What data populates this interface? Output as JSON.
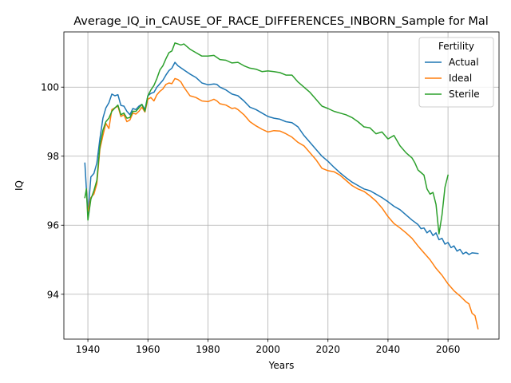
{
  "chart_data": {
    "type": "line",
    "title": "Average_IQ_in_CAUSE_OF_RACE_DIFFERENCES_INBORN_Sample for Mal",
    "xlabel": "Years",
    "ylabel": "IQ",
    "xlim": [
      1932,
      2077
    ],
    "ylim": [
      92.7,
      101.6
    ],
    "xticks": [
      1940,
      1960,
      1980,
      2000,
      2020,
      2040,
      2060
    ],
    "yticks": [
      94,
      96,
      98,
      100
    ],
    "grid": true,
    "legend": {
      "title": "Fertility",
      "placement": "top-right"
    },
    "series": [
      {
        "name": "Actual",
        "color": "#1f77b4",
        "points": [
          [
            1939,
            97.8
          ],
          [
            1940,
            96.3
          ],
          [
            1941,
            97.4
          ],
          [
            1942,
            97.5
          ],
          [
            1943,
            97.8
          ],
          [
            1944,
            98.5
          ],
          [
            1945,
            99.1
          ],
          [
            1946,
            99.4
          ],
          [
            1947,
            99.55
          ],
          [
            1948,
            99.8
          ],
          [
            1949,
            99.75
          ],
          [
            1950,
            99.78
          ],
          [
            1951,
            99.47
          ],
          [
            1952,
            99.45
          ],
          [
            1953,
            99.3
          ],
          [
            1954,
            99.2
          ],
          [
            1955,
            99.38
          ],
          [
            1956,
            99.35
          ],
          [
            1957,
            99.45
          ],
          [
            1958,
            99.5
          ],
          [
            1959,
            99.35
          ],
          [
            1960,
            99.75
          ],
          [
            1961,
            99.82
          ],
          [
            1962,
            99.85
          ],
          [
            1963,
            100.0
          ],
          [
            1964,
            100.1
          ],
          [
            1965,
            100.2
          ],
          [
            1966,
            100.35
          ],
          [
            1967,
            100.48
          ],
          [
            1968,
            100.55
          ],
          [
            1969,
            100.72
          ],
          [
            1970,
            100.62
          ],
          [
            1972,
            100.5
          ],
          [
            1974,
            100.38
          ],
          [
            1976,
            100.28
          ],
          [
            1978,
            100.12
          ],
          [
            1980,
            100.07
          ],
          [
            1982,
            100.09
          ],
          [
            1983,
            100.08
          ],
          [
            1984,
            100.0
          ],
          [
            1986,
            99.92
          ],
          [
            1988,
            99.8
          ],
          [
            1990,
            99.75
          ],
          [
            1992,
            99.6
          ],
          [
            1994,
            99.42
          ],
          [
            1996,
            99.35
          ],
          [
            1998,
            99.25
          ],
          [
            2000,
            99.15
          ],
          [
            2002,
            99.1
          ],
          [
            2004,
            99.07
          ],
          [
            2006,
            99.0
          ],
          [
            2008,
            98.97
          ],
          [
            2010,
            98.85
          ],
          [
            2012,
            98.6
          ],
          [
            2014,
            98.4
          ],
          [
            2016,
            98.2
          ],
          [
            2018,
            98.0
          ],
          [
            2020,
            97.85
          ],
          [
            2022,
            97.68
          ],
          [
            2024,
            97.52
          ],
          [
            2026,
            97.38
          ],
          [
            2028,
            97.25
          ],
          [
            2030,
            97.15
          ],
          [
            2032,
            97.05
          ],
          [
            2034,
            97.0
          ],
          [
            2036,
            96.9
          ],
          [
            2038,
            96.8
          ],
          [
            2040,
            96.68
          ],
          [
            2042,
            96.55
          ],
          [
            2044,
            96.45
          ],
          [
            2046,
            96.3
          ],
          [
            2048,
            96.15
          ],
          [
            2050,
            96.02
          ],
          [
            2051,
            95.9
          ],
          [
            2052,
            95.92
          ],
          [
            2053,
            95.78
          ],
          [
            2054,
            95.85
          ],
          [
            2055,
            95.7
          ],
          [
            2056,
            95.78
          ],
          [
            2057,
            95.58
          ],
          [
            2058,
            95.62
          ],
          [
            2059,
            95.45
          ],
          [
            2060,
            95.5
          ],
          [
            2061,
            95.35
          ],
          [
            2062,
            95.4
          ],
          [
            2063,
            95.25
          ],
          [
            2064,
            95.3
          ],
          [
            2065,
            95.17
          ],
          [
            2066,
            95.22
          ],
          [
            2067,
            95.15
          ],
          [
            2068,
            95.2
          ],
          [
            2070,
            95.18
          ]
        ]
      },
      {
        "name": "Ideal",
        "color": "#ff7f0e",
        "points": [
          [
            1940,
            96.4
          ],
          [
            1941,
            96.8
          ],
          [
            1942,
            96.9
          ],
          [
            1943,
            97.2
          ],
          [
            1944,
            98.2
          ],
          [
            1945,
            98.6
          ],
          [
            1946,
            98.95
          ],
          [
            1947,
            98.8
          ],
          [
            1948,
            99.35
          ],
          [
            1949,
            99.4
          ],
          [
            1950,
            99.45
          ],
          [
            1951,
            99.15
          ],
          [
            1952,
            99.2
          ],
          [
            1953,
            99.0
          ],
          [
            1954,
            99.05
          ],
          [
            1955,
            99.25
          ],
          [
            1956,
            99.22
          ],
          [
            1957,
            99.3
          ],
          [
            1958,
            99.42
          ],
          [
            1959,
            99.28
          ],
          [
            1960,
            99.65
          ],
          [
            1961,
            99.7
          ],
          [
            1962,
            99.6
          ],
          [
            1963,
            99.78
          ],
          [
            1964,
            99.88
          ],
          [
            1965,
            99.95
          ],
          [
            1966,
            100.08
          ],
          [
            1967,
            100.12
          ],
          [
            1968,
            100.1
          ],
          [
            1969,
            100.25
          ],
          [
            1970,
            100.22
          ],
          [
            1971,
            100.15
          ],
          [
            1972,
            100.0
          ],
          [
            1974,
            99.75
          ],
          [
            1976,
            99.7
          ],
          [
            1978,
            99.6
          ],
          [
            1980,
            99.58
          ],
          [
            1982,
            99.65
          ],
          [
            1983,
            99.6
          ],
          [
            1984,
            99.52
          ],
          [
            1986,
            99.48
          ],
          [
            1988,
            99.38
          ],
          [
            1989,
            99.4
          ],
          [
            1990,
            99.35
          ],
          [
            1992,
            99.2
          ],
          [
            1994,
            99.0
          ],
          [
            1996,
            98.88
          ],
          [
            1998,
            98.78
          ],
          [
            2000,
            98.7
          ],
          [
            2002,
            98.74
          ],
          [
            2004,
            98.73
          ],
          [
            2006,
            98.65
          ],
          [
            2008,
            98.55
          ],
          [
            2010,
            98.4
          ],
          [
            2012,
            98.3
          ],
          [
            2014,
            98.1
          ],
          [
            2016,
            97.9
          ],
          [
            2018,
            97.65
          ],
          [
            2020,
            97.58
          ],
          [
            2022,
            97.55
          ],
          [
            2024,
            97.45
          ],
          [
            2026,
            97.3
          ],
          [
            2028,
            97.15
          ],
          [
            2030,
            97.05
          ],
          [
            2032,
            96.98
          ],
          [
            2034,
            96.85
          ],
          [
            2036,
            96.7
          ],
          [
            2038,
            96.5
          ],
          [
            2040,
            96.25
          ],
          [
            2042,
            96.05
          ],
          [
            2044,
            95.92
          ],
          [
            2046,
            95.78
          ],
          [
            2048,
            95.62
          ],
          [
            2050,
            95.4
          ],
          [
            2052,
            95.2
          ],
          [
            2054,
            95.0
          ],
          [
            2056,
            94.75
          ],
          [
            2058,
            94.55
          ],
          [
            2060,
            94.3
          ],
          [
            2062,
            94.1
          ],
          [
            2064,
            93.95
          ],
          [
            2066,
            93.78
          ],
          [
            2067,
            93.72
          ],
          [
            2068,
            93.45
          ],
          [
            2069,
            93.38
          ],
          [
            2070,
            93.0
          ]
        ]
      },
      {
        "name": "Sterile",
        "color": "#2ca02c",
        "points": [
          [
            1939,
            96.8
          ],
          [
            1939.5,
            97.05
          ],
          [
            1940,
            96.15
          ],
          [
            1941,
            96.75
          ],
          [
            1942,
            97.0
          ],
          [
            1943,
            97.3
          ],
          [
            1944,
            98.3
          ],
          [
            1945,
            98.75
          ],
          [
            1946,
            99.0
          ],
          [
            1947,
            99.1
          ],
          [
            1948,
            99.3
          ],
          [
            1949,
            99.4
          ],
          [
            1950,
            99.48
          ],
          [
            1951,
            99.2
          ],
          [
            1952,
            99.25
          ],
          [
            1953,
            99.1
          ],
          [
            1954,
            99.12
          ],
          [
            1955,
            99.3
          ],
          [
            1956,
            99.3
          ],
          [
            1957,
            99.4
          ],
          [
            1958,
            99.5
          ],
          [
            1959,
            99.3
          ],
          [
            1960,
            99.75
          ],
          [
            1961,
            99.92
          ],
          [
            1962,
            100.05
          ],
          [
            1963,
            100.25
          ],
          [
            1964,
            100.5
          ],
          [
            1965,
            100.62
          ],
          [
            1966,
            100.82
          ],
          [
            1967,
            101.0
          ],
          [
            1968,
            101.05
          ],
          [
            1969,
            101.28
          ],
          [
            1970,
            101.25
          ],
          [
            1971,
            101.22
          ],
          [
            1972,
            101.25
          ],
          [
            1974,
            101.1
          ],
          [
            1976,
            101.0
          ],
          [
            1978,
            100.9
          ],
          [
            1980,
            100.9
          ],
          [
            1982,
            100.92
          ],
          [
            1984,
            100.8
          ],
          [
            1986,
            100.78
          ],
          [
            1988,
            100.7
          ],
          [
            1990,
            100.72
          ],
          [
            1992,
            100.62
          ],
          [
            1994,
            100.55
          ],
          [
            1996,
            100.52
          ],
          [
            1998,
            100.45
          ],
          [
            2000,
            100.47
          ],
          [
            2002,
            100.45
          ],
          [
            2004,
            100.42
          ],
          [
            2006,
            100.35
          ],
          [
            2008,
            100.35
          ],
          [
            2010,
            100.15
          ],
          [
            2012,
            100.0
          ],
          [
            2014,
            99.85
          ],
          [
            2016,
            99.65
          ],
          [
            2018,
            99.45
          ],
          [
            2020,
            99.38
          ],
          [
            2022,
            99.3
          ],
          [
            2024,
            99.25
          ],
          [
            2026,
            99.2
          ],
          [
            2028,
            99.12
          ],
          [
            2030,
            99.0
          ],
          [
            2032,
            98.85
          ],
          [
            2034,
            98.82
          ],
          [
            2036,
            98.65
          ],
          [
            2038,
            98.7
          ],
          [
            2040,
            98.5
          ],
          [
            2042,
            98.6
          ],
          [
            2044,
            98.3
          ],
          [
            2046,
            98.1
          ],
          [
            2048,
            97.95
          ],
          [
            2049,
            97.8
          ],
          [
            2050,
            97.6
          ],
          [
            2052,
            97.45
          ],
          [
            2053,
            97.05
          ],
          [
            2054,
            96.9
          ],
          [
            2055,
            96.95
          ],
          [
            2056,
            96.6
          ],
          [
            2057,
            95.75
          ],
          [
            2058,
            96.3
          ],
          [
            2059,
            97.1
          ],
          [
            2060,
            97.45
          ]
        ]
      }
    ]
  }
}
